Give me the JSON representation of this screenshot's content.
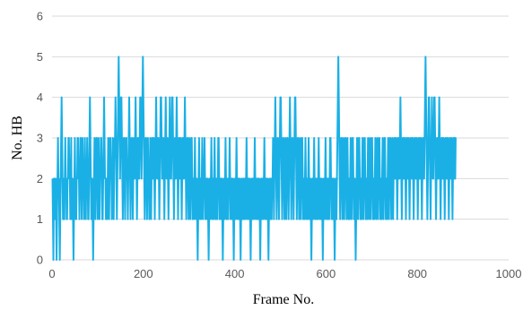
{
  "chart_data": {
    "type": "line",
    "xlabel": "Frame No.",
    "ylabel": "No. HB",
    "xlim": [
      0,
      1000
    ],
    "ylim": [
      0,
      6
    ],
    "x_ticks": [
      "0",
      "200",
      "400",
      "600",
      "800",
      "1000"
    ],
    "y_ticks": [
      "0",
      "1",
      "2",
      "3",
      "4",
      "5",
      "6"
    ],
    "grid": "horizontal",
    "legend": "none",
    "series": [
      {
        "color": "#1ab0e6",
        "x_start": 1,
        "x_step": 1,
        "values": [
          2,
          1,
          0,
          2,
          2,
          1,
          2,
          2,
          1,
          0,
          1,
          2,
          3,
          2,
          2,
          1,
          0,
          1,
          2,
          3,
          4,
          3,
          2,
          1,
          2,
          1,
          1,
          2,
          3,
          2,
          2,
          1,
          1,
          2,
          2,
          3,
          3,
          2,
          2,
          1,
          2,
          3,
          1,
          2,
          2,
          1,
          0,
          1,
          2,
          3,
          2,
          1,
          1,
          2,
          2,
          3,
          3,
          2,
          2,
          1,
          2,
          3,
          3,
          2,
          1,
          2,
          3,
          2,
          2,
          1,
          2,
          3,
          2,
          1,
          2,
          2,
          3,
          2,
          1,
          1,
          2,
          3,
          4,
          3,
          2,
          1,
          2,
          2,
          1,
          0,
          1,
          2,
          3,
          2,
          1,
          2,
          3,
          3,
          2,
          1,
          2,
          3,
          2,
          1,
          2,
          2,
          3,
          3,
          2,
          1,
          1,
          2,
          3,
          4,
          3,
          2,
          2,
          1,
          2,
          2,
          1,
          2,
          3,
          2,
          1,
          2,
          3,
          3,
          2,
          2,
          1,
          2,
          3,
          2,
          1,
          2,
          3,
          3,
          4,
          3,
          2,
          1,
          2,
          3,
          4,
          5,
          4,
          3,
          2,
          3,
          4,
          4,
          3,
          2,
          1,
          2,
          3,
          3,
          2,
          1,
          2,
          3,
          3,
          2,
          2,
          1,
          2,
          3,
          4,
          3,
          2,
          1,
          2,
          3,
          3,
          2,
          1,
          2,
          3,
          2,
          2,
          3,
          4,
          3,
          2,
          1,
          2,
          3,
          3,
          2,
          2,
          3,
          4,
          4,
          3,
          2,
          3,
          4,
          5,
          4,
          3,
          2,
          1,
          2,
          3,
          3,
          2,
          1,
          2,
          3,
          2,
          2,
          1,
          2,
          3,
          2,
          1,
          2,
          3,
          3,
          2,
          2,
          3,
          2,
          1,
          2,
          3,
          4,
          3,
          2,
          2,
          3,
          3,
          2,
          1,
          2,
          3,
          4,
          4,
          3,
          2,
          2,
          3,
          3,
          2,
          1,
          2,
          3,
          4,
          3,
          2,
          2,
          3,
          2,
          1,
          2,
          3,
          4,
          3,
          2,
          2,
          3,
          4,
          4,
          3,
          2,
          1,
          2,
          3,
          2,
          2,
          3,
          4,
          3,
          2,
          1,
          2,
          3,
          3,
          2,
          2,
          3,
          2,
          1,
          2,
          3,
          3,
          2,
          2,
          3,
          4,
          3,
          2,
          1,
          2,
          3,
          3,
          2,
          1,
          2,
          3,
          2,
          1,
          2,
          3,
          3,
          2,
          1,
          2,
          2,
          1,
          2,
          3,
          2,
          1,
          2,
          2,
          1,
          0,
          1,
          2,
          3,
          2,
          1,
          2,
          2,
          1,
          2,
          3,
          2,
          1,
          2,
          2,
          3,
          2,
          1,
          2,
          2,
          1,
          2,
          2,
          1,
          0,
          1,
          2,
          2,
          1,
          2,
          3,
          2,
          1,
          2,
          2,
          1,
          2,
          3,
          2,
          1,
          1,
          2,
          2,
          1,
          2,
          3,
          3,
          2,
          1,
          2,
          2,
          1,
          2,
          2,
          1,
          0,
          1,
          2,
          2,
          1,
          2,
          3,
          2,
          1,
          1,
          2,
          2,
          1,
          2,
          2,
          3,
          2,
          1,
          2,
          2,
          1,
          2,
          2,
          1,
          0,
          1,
          2,
          2,
          1,
          2,
          3,
          2,
          1,
          2,
          2,
          1,
          2,
          2,
          1,
          0,
          1,
          2,
          2,
          1,
          1,
          2,
          2,
          1,
          2,
          2,
          1,
          2,
          3,
          2,
          1,
          2,
          2,
          1,
          2,
          2,
          1,
          0,
          1,
          2,
          2,
          1,
          2,
          2,
          1,
          2,
          3,
          2,
          1,
          2,
          2,
          1,
          2,
          2,
          1,
          2,
          2,
          1,
          0,
          1,
          2,
          2,
          1,
          2,
          2,
          1,
          2,
          3,
          2,
          1,
          2,
          2,
          1,
          2,
          2,
          1,
          0,
          1,
          2,
          2,
          1,
          2,
          2,
          1,
          2,
          2,
          3,
          2,
          1,
          2,
          3,
          4,
          3,
          2,
          1,
          2,
          3,
          3,
          2,
          1,
          2,
          3,
          4,
          4,
          3,
          2,
          1,
          2,
          3,
          3,
          2,
          1,
          2,
          3,
          2,
          1,
          2,
          3,
          3,
          2,
          1,
          2,
          3,
          4,
          3,
          2,
          1,
          2,
          3,
          3,
          2,
          1,
          2,
          3,
          4,
          4,
          3,
          2,
          1,
          2,
          3,
          3,
          2,
          1,
          2,
          3,
          2,
          1,
          2,
          3,
          3,
          2,
          1,
          2,
          2,
          1,
          2,
          3,
          2,
          1,
          2,
          2,
          1,
          2,
          3,
          2,
          1,
          2,
          2,
          1,
          0,
          1,
          2,
          2,
          1,
          2,
          3,
          2,
          1,
          2,
          2,
          1,
          2,
          2,
          1,
          2,
          3,
          2,
          1,
          2,
          2,
          1,
          2,
          2,
          1,
          0,
          1,
          2,
          2,
          1,
          2,
          3,
          2,
          1,
          2,
          2,
          1,
          2,
          2,
          1,
          2,
          3,
          3,
          2,
          1,
          2,
          2,
          1,
          2,
          2,
          1,
          0,
          1,
          2,
          2,
          1,
          2,
          3,
          4,
          5,
          4,
          3,
          2,
          1,
          2,
          3,
          3,
          2,
          1,
          2,
          3,
          2,
          1,
          2,
          3,
          3,
          2,
          1,
          2,
          3,
          2,
          1,
          2,
          2,
          1,
          2,
          3,
          2,
          1,
          2,
          3,
          3,
          2,
          1,
          2,
          2,
          1,
          0,
          1,
          2,
          3,
          2,
          1,
          2,
          3,
          3,
          2,
          1,
          2,
          2,
          1,
          2,
          3,
          2,
          1,
          2,
          3,
          3,
          2,
          1,
          2,
          2,
          1,
          2,
          3,
          2,
          1,
          2,
          3,
          2,
          1,
          2,
          3,
          3,
          2,
          1,
          2,
          2,
          1,
          2,
          3,
          2,
          1,
          2,
          3,
          2,
          1,
          2,
          3,
          3,
          2,
          1,
          2,
          2,
          1,
          2,
          3,
          2,
          1,
          2,
          3,
          3,
          2,
          1,
          2,
          2,
          1,
          2,
          3,
          2,
          1,
          2,
          3,
          3,
          2,
          1,
          2,
          3,
          2,
          1,
          2,
          3,
          3,
          2,
          2,
          3,
          3,
          2,
          1,
          2,
          3,
          3,
          2,
          2,
          3,
          4,
          3,
          2,
          1,
          2,
          3,
          3,
          2,
          2,
          3,
          3,
          2,
          1,
          2,
          3,
          3,
          2,
          2,
          3,
          2,
          1,
          2,
          3,
          3,
          2,
          2,
          3,
          3,
          2,
          1,
          2,
          3,
          3,
          2,
          2,
          3,
          3,
          2,
          1,
          2,
          3,
          3,
          2,
          2,
          3,
          3,
          2,
          1,
          2,
          3,
          3,
          2,
          2,
          3,
          4,
          5,
          4,
          3,
          2,
          1,
          2,
          3,
          4,
          4,
          3,
          2,
          1,
          2,
          3,
          4,
          3,
          2,
          2,
          3,
          4,
          4,
          3,
          2,
          1,
          2,
          3,
          3,
          2,
          2,
          3,
          4,
          3,
          2,
          1,
          2,
          3,
          3,
          2,
          2,
          3,
          3,
          2,
          1,
          2,
          3,
          3,
          2,
          2,
          3,
          3,
          2,
          1,
          2,
          3,
          3,
          2,
          2,
          3,
          2,
          1,
          2,
          3,
          3,
          2,
          3,
          2,
          3,
          3
        ]
      }
    ]
  }
}
